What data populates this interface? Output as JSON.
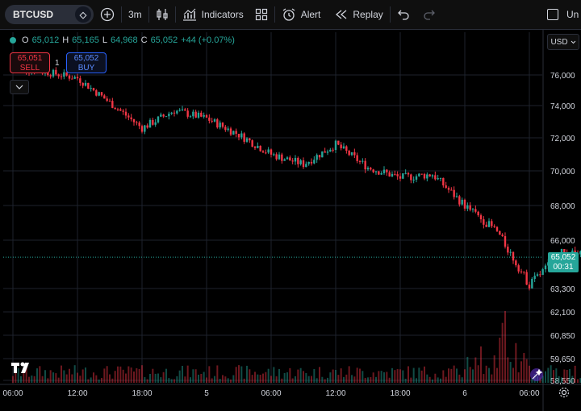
{
  "toolbar": {
    "symbol": "BTCUSD",
    "interval": "3m",
    "indicators_label": "Indicators",
    "alert_label": "Alert",
    "replay_label": "Replay",
    "unlock_label": "Un"
  },
  "legend": {
    "open_label": "O",
    "open": "65,012",
    "high_label": "H",
    "high": "65,165",
    "low_label": "L",
    "low": "64,968",
    "close_label": "C",
    "close": "65,052",
    "change": "+44 (+0.07%)"
  },
  "trade": {
    "sell_price": "65,051",
    "sell_label": "SELL",
    "quantity": "1",
    "buy_price": "65,052",
    "buy_label": "BUY"
  },
  "currency": "USD",
  "price_tag": {
    "price": "65,052",
    "countdown": "00:31"
  },
  "price_axis": [
    "76,000",
    "74,000",
    "72,000",
    "70,000",
    "68,000",
    "66,000",
    "63,300",
    "62,100",
    "60,850",
    "59,650",
    "58,550"
  ],
  "time_axis": [
    "06:00",
    "12:00",
    "18:00",
    "5",
    "06:00",
    "12:00",
    "18:00",
    "6",
    "06:00"
  ],
  "colors": {
    "up": "#26a69a",
    "down": "#f23645",
    "background": "#000000",
    "grid": "#1e222d"
  },
  "chart_data": {
    "type": "candlestick",
    "symbol": "BTCUSD",
    "interval": "3m",
    "x_ticks": [
      "06:00",
      "12:00",
      "18:00",
      "5",
      "06:00",
      "12:00",
      "18:00",
      "6",
      "06:00"
    ],
    "path_time_hours": [
      0,
      3,
      6,
      9,
      12,
      15,
      18,
      21,
      24,
      27,
      30,
      33,
      36,
      39,
      42,
      45,
      48,
      51,
      54
    ],
    "path_price": [
      76500,
      76200,
      75800,
      74200,
      72600,
      73700,
      73200,
      72200,
      71000,
      70400,
      71600,
      70200,
      69600,
      69800,
      68000,
      66500,
      63500,
      65300,
      65052
    ],
    "last_price": 65052
  }
}
